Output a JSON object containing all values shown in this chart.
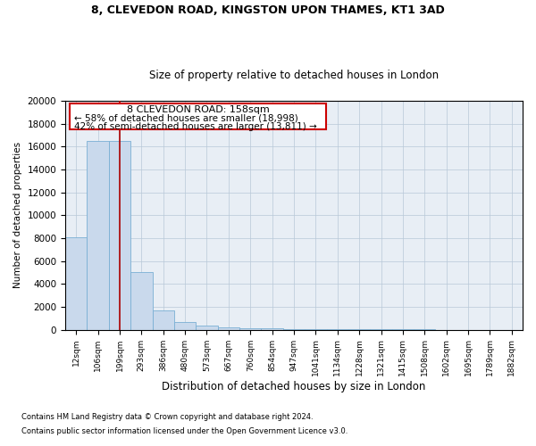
{
  "title1": "8, CLEVEDON ROAD, KINGSTON UPON THAMES, KT1 3AD",
  "title2": "Size of property relative to detached houses in London",
  "xlabel": "Distribution of detached houses by size in London",
  "ylabel": "Number of detached properties",
  "footnote1": "Contains HM Land Registry data © Crown copyright and database right 2024.",
  "footnote2": "Contains public sector information licensed under the Open Government Licence v3.0.",
  "annotation_title": "8 CLEVEDON ROAD: 158sqm",
  "annotation_line1": "← 58% of detached houses are smaller (18,998)",
  "annotation_line2": "42% of semi-detached houses are larger (13,811) →",
  "bar_color": "#c9d9ec",
  "bar_edge_color": "#7aafd4",
  "vline_color": "#aa0000",
  "annotation_box_color": "#cc0000",
  "background_color": "#ffffff",
  "axes_bg_color": "#e8eef5",
  "grid_color": "#b8c8d8",
  "categories": [
    "12sqm",
    "106sqm",
    "199sqm",
    "293sqm",
    "386sqm",
    "480sqm",
    "573sqm",
    "667sqm",
    "760sqm",
    "854sqm",
    "947sqm",
    "1041sqm",
    "1134sqm",
    "1228sqm",
    "1321sqm",
    "1415sqm",
    "1508sqm",
    "1602sqm",
    "1695sqm",
    "1789sqm",
    "1882sqm"
  ],
  "values": [
    8050,
    16500,
    16500,
    5000,
    1700,
    650,
    380,
    220,
    160,
    110,
    80,
    60,
    45,
    30,
    22,
    15,
    10,
    7,
    5,
    3,
    2
  ],
  "vline_x": 2.0,
  "ylim": [
    0,
    20000
  ],
  "yticks": [
    0,
    2000,
    4000,
    6000,
    8000,
    10000,
    12000,
    14000,
    16000,
    18000,
    20000
  ]
}
